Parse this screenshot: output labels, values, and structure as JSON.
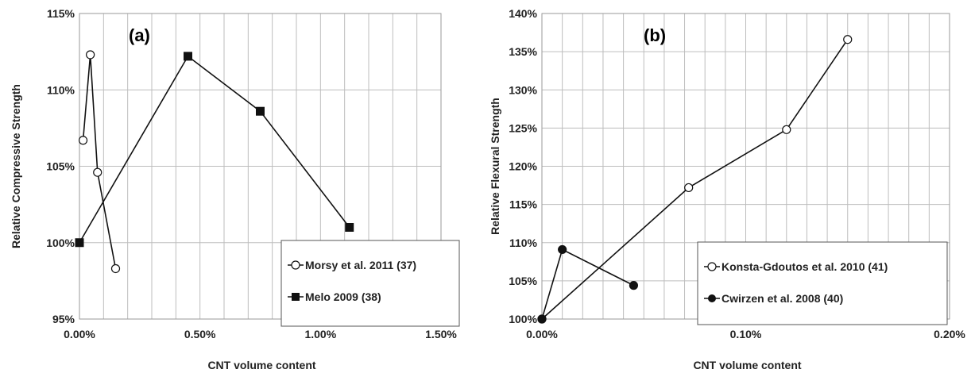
{
  "chart_data": [
    {
      "type": "line",
      "panel_label": "(a)",
      "xlabel": "CNT volume content",
      "ylabel": "Relative Compressive Strength",
      "xlim": [
        0,
        0.015
      ],
      "ylim": [
        0.95,
        1.15
      ],
      "x_ticks": [
        0,
        0.005,
        0.01,
        0.015
      ],
      "x_tick_labels": [
        "0.00%",
        "0.50%",
        "1.00%",
        "1.50%"
      ],
      "y_ticks": [
        0.95,
        1.0,
        1.05,
        1.1,
        1.15
      ],
      "y_tick_labels": [
        "95%",
        "100%",
        "105%",
        "110%",
        "115%"
      ],
      "x_minor_step": 0.001,
      "grid": true,
      "legend_position": "bottom-right",
      "series": [
        {
          "name": "Morsy et al. 2011 (37)",
          "marker": "open-circle",
          "x": [
            0.00015,
            0.00045,
            0.00075,
            0.0015
          ],
          "y": [
            1.067,
            1.123,
            1.046,
            0.983
          ]
        },
        {
          "name": "Melo 2009 (38)",
          "marker": "filled-square",
          "x": [
            0,
            0.0045,
            0.0075,
            0.0112
          ],
          "y": [
            1.0,
            1.122,
            1.086,
            1.01
          ]
        }
      ]
    },
    {
      "type": "line",
      "panel_label": "(b)",
      "xlabel": "CNT volume content",
      "ylabel": "Relative Flexural Strength",
      "xlim": [
        0,
        0.002
      ],
      "ylim": [
        1.0,
        1.4
      ],
      "x_ticks": [
        0,
        0.001,
        0.002
      ],
      "x_tick_labels": [
        "0.00%",
        "0.10%",
        "0.20%"
      ],
      "y_ticks": [
        1.0,
        1.05,
        1.1,
        1.15,
        1.2,
        1.25,
        1.3,
        1.35,
        1.4
      ],
      "y_tick_labels": [
        "100%",
        "105%",
        "110%",
        "115%",
        "120%",
        "125%",
        "130%",
        "135%",
        "140%"
      ],
      "x_minor_step": 0.0001,
      "grid": true,
      "legend_position": "bottom-right",
      "series": [
        {
          "name": "Konsta-Gdoutos et al. 2010 (41)",
          "marker": "open-circle",
          "x": [
            0,
            0.00072,
            0.0012,
            0.0015
          ],
          "y": [
            1.0,
            1.172,
            1.248,
            1.366
          ]
        },
        {
          "name": "Cwirzen et al. 2008 (40)",
          "marker": "filled-circle",
          "x": [
            0,
            0.0001,
            0.00045
          ],
          "y": [
            1.0,
            1.091,
            1.044
          ]
        }
      ]
    }
  ]
}
